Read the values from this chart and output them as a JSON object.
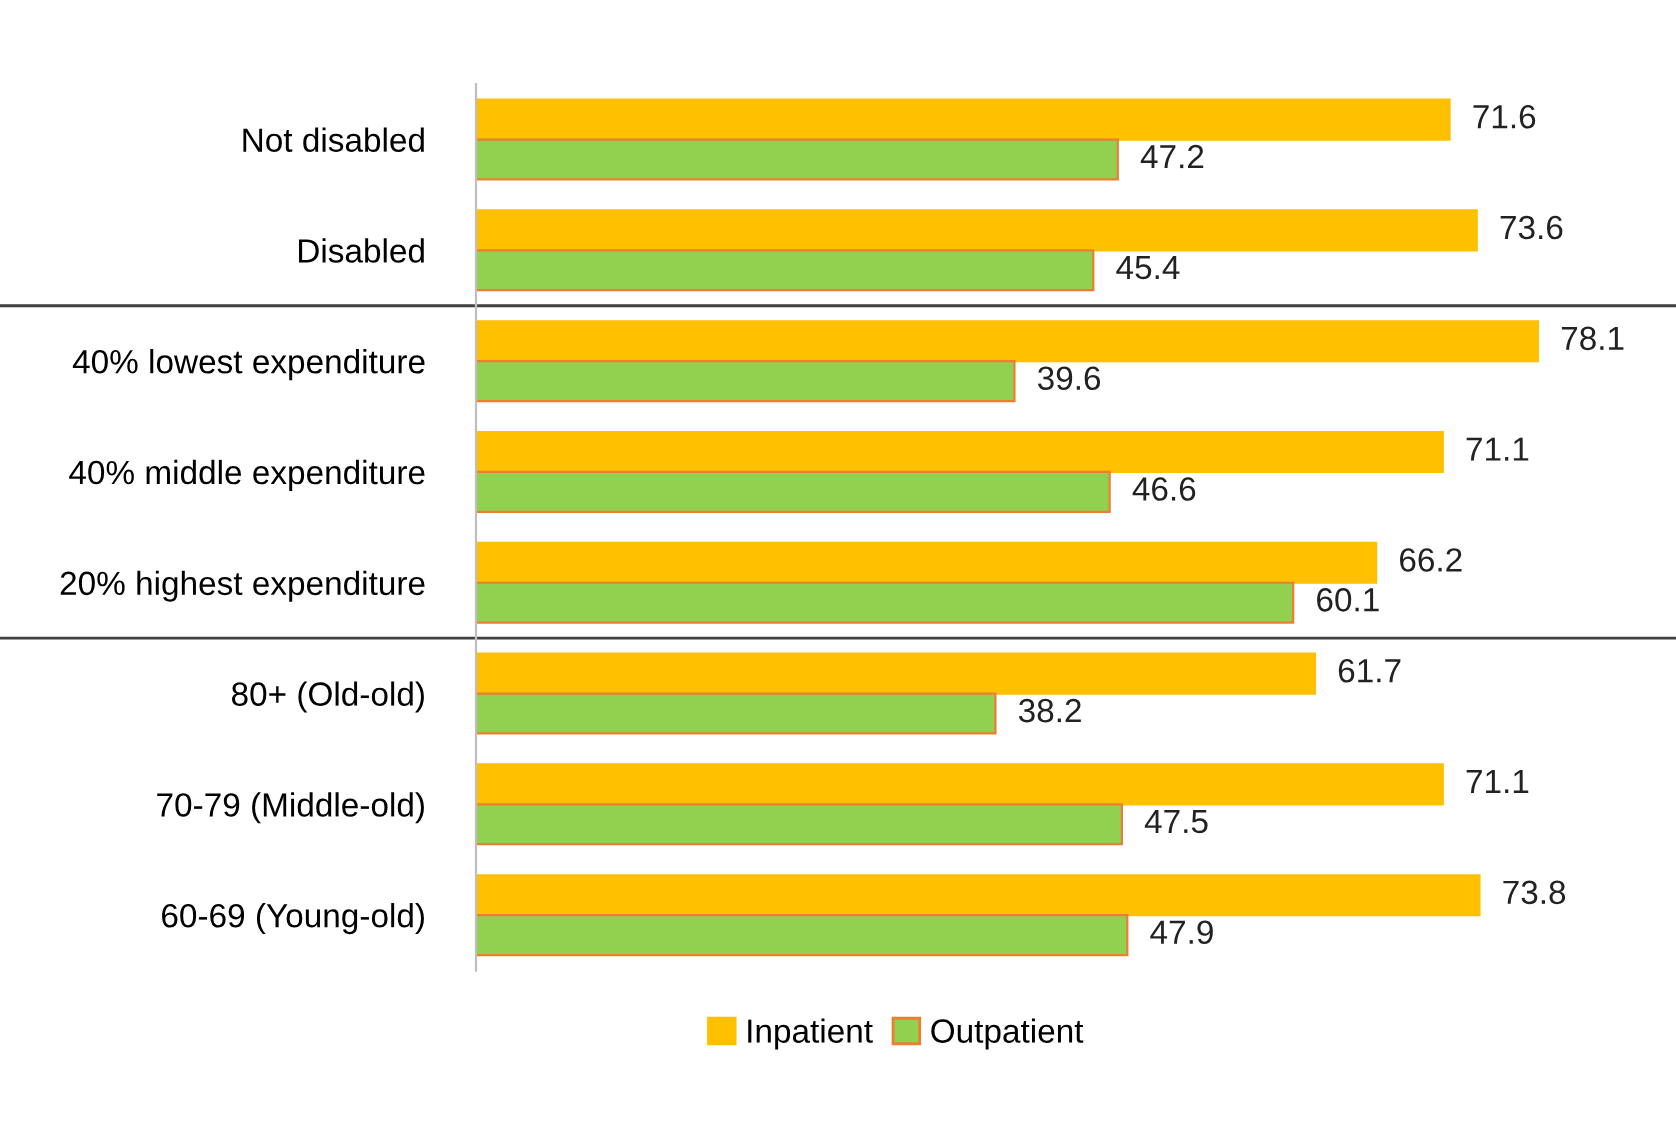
{
  "chart_data": {
    "type": "bar",
    "orientation": "horizontal",
    "categories": [
      "Not disabled",
      "Disabled",
      "40% lowest expenditure",
      "40% middle expenditure",
      "20% highest expenditure",
      "80+ (Old-old)",
      "70-79 (Middle-old)",
      "60-69 (Young-old)"
    ],
    "series": [
      {
        "name": "Inpatient",
        "color": "#ffc000",
        "values": [
          71.6,
          73.6,
          78.1,
          71.1,
          66.2,
          61.7,
          71.1,
          73.8
        ]
      },
      {
        "name": "Outpatient",
        "color": "#92d050",
        "values": [
          47.2,
          45.4,
          39.6,
          46.6,
          60.1,
          38.2,
          47.5,
          47.9
        ]
      }
    ],
    "data_labels": true,
    "legend": "bottom",
    "grid": false
  }
}
